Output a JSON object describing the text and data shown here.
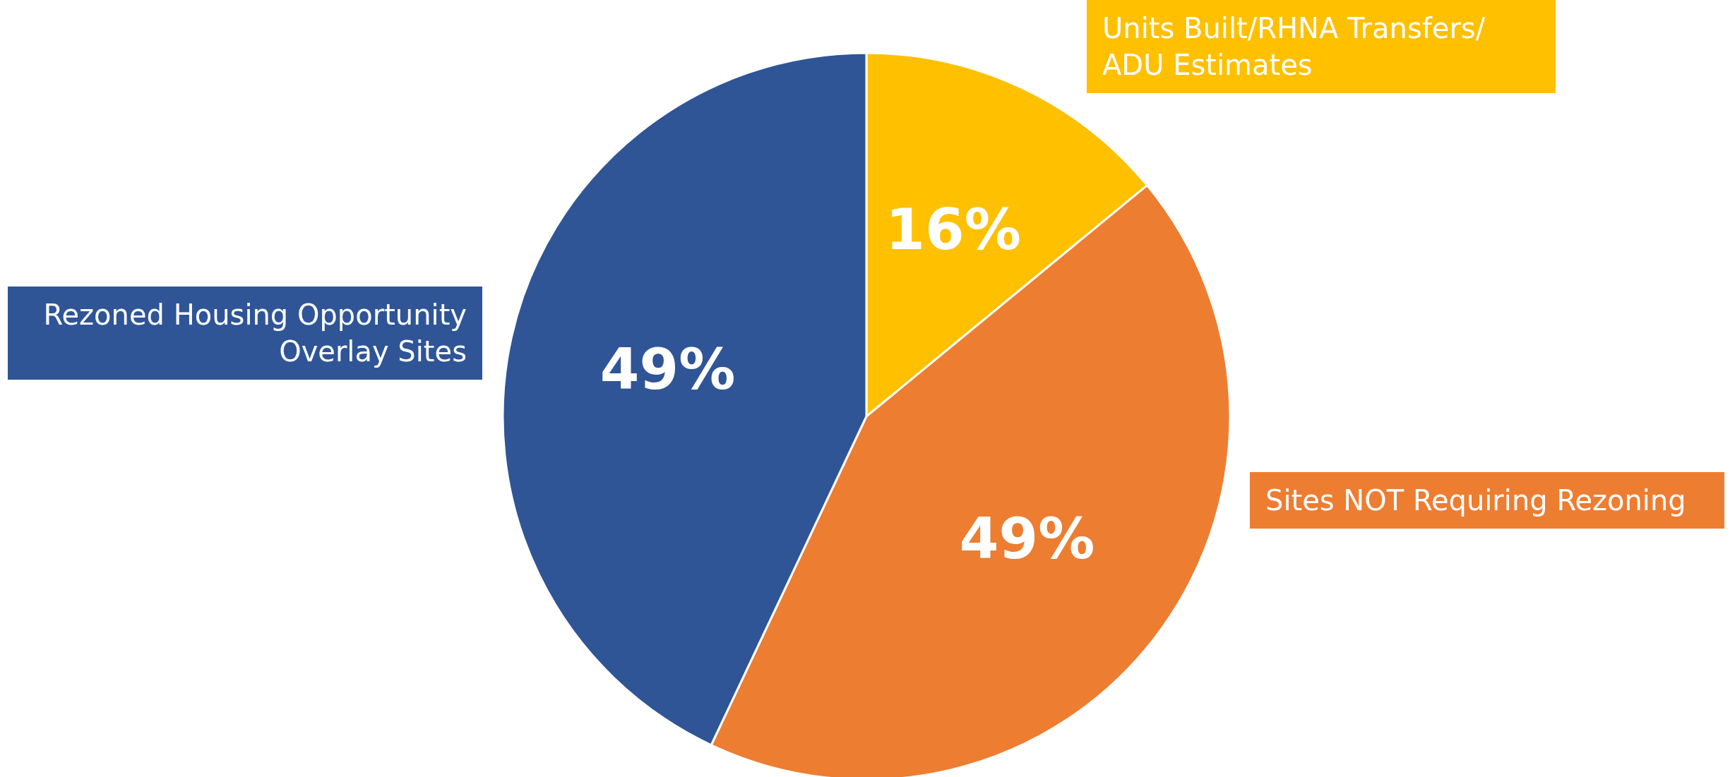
{
  "chart_data": {
    "type": "pie",
    "categories": [
      "Units Built/RHNA Transfers/ ADU Estimates",
      "Sites NOT Requiring Rezoning",
      "Rezoned Housing Opportunity Overlay Sites"
    ],
    "values": [
      16,
      49,
      49
    ],
    "value_labels": [
      "16%",
      "49%",
      "49%"
    ],
    "colors": [
      "#ffc000",
      "#ed7d31",
      "#2f5597"
    ]
  }
}
